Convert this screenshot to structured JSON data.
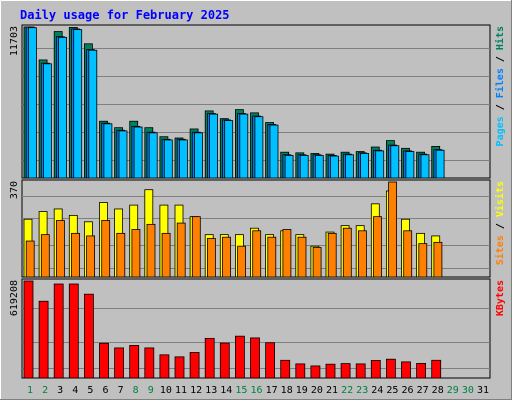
{
  "colors": {
    "background": "#C0C0C0",
    "plot_background": "#C0C0C0",
    "grid": "#808080",
    "title": "#0000FF",
    "axis_text": "#000000",
    "weekend": "#008040",
    "hits": "#00805C",
    "files": "#0080FF",
    "pages": "#00C0FF",
    "visits": "#FFFF00",
    "sites": "#FF8000",
    "kbytes": "#FF0000"
  },
  "chart_data": [
    {
      "type": "bar",
      "title": "Daily usage for February 2025",
      "ymax_label": "11703",
      "ylim": [
        0,
        11703
      ],
      "right_labels": [
        {
          "text": "Pages",
          "color": "#00C0FF"
        },
        {
          "text": " / ",
          "color": "#000000"
        },
        {
          "text": "Files",
          "color": "#0080FF"
        },
        {
          "text": " / ",
          "color": "#000000"
        },
        {
          "text": "Hits",
          "color": "#00805C"
        }
      ],
      "categories": [
        "1",
        "2",
        "3",
        "4",
        "5",
        "6",
        "7",
        "8",
        "9",
        "10",
        "11",
        "12",
        "13",
        "14",
        "15",
        "16",
        "17",
        "18",
        "19",
        "20",
        "21",
        "22",
        "23",
        "24",
        "25",
        "26",
        "27",
        "28",
        "29",
        "30",
        "31"
      ],
      "weekend_days": [
        "1",
        "2",
        "8",
        "9",
        "15",
        "16",
        "22",
        "23",
        "29",
        "30"
      ],
      "series": [
        {
          "name": "Hits",
          "color": "#00805C",
          "values": [
            11703,
            9150,
            11350,
            11670,
            10400,
            4400,
            3900,
            4400,
            3900,
            3200,
            3100,
            3800,
            5200,
            4600,
            5300,
            5050,
            4300,
            2000,
            1950,
            1900,
            1850,
            2000,
            2050,
            2400,
            2900,
            2300,
            2000,
            2450,
            null,
            null,
            null
          ]
        },
        {
          "name": "Files",
          "color": "#0080FF",
          "values": [
            11703,
            8900,
            10950,
            11550,
            9950,
            4250,
            3700,
            4000,
            3550,
            3000,
            3000,
            3550,
            5000,
            4500,
            5000,
            4800,
            4150,
            1800,
            1800,
            1800,
            1750,
            1850,
            1950,
            2150,
            2550,
            2100,
            1850,
            2200,
            null,
            null,
            null
          ]
        },
        {
          "name": "Pages",
          "color": "#00C0FF",
          "values": [
            11650,
            8850,
            10900,
            11500,
            9900,
            4200,
            3650,
            3950,
            3500,
            2950,
            2950,
            3500,
            4950,
            4450,
            4950,
            4750,
            4100,
            1750,
            1750,
            1750,
            1700,
            1800,
            1900,
            2100,
            2500,
            2050,
            1800,
            2150,
            null,
            null,
            null
          ]
        }
      ]
    },
    {
      "type": "bar",
      "ymax_label": "370",
      "ylim": [
        0,
        370
      ],
      "right_labels": [
        {
          "text": "Sites",
          "color": "#FF8000"
        },
        {
          "text": " / ",
          "color": "#000000"
        },
        {
          "text": "Visits",
          "color": "#FFFF00"
        }
      ],
      "series": [
        {
          "name": "Visits",
          "color": "#FFFF00",
          "values": [
            225,
            255,
            265,
            240,
            215,
            290,
            265,
            280,
            340,
            280,
            280,
            235,
            165,
            165,
            165,
            190,
            165,
            180,
            165,
            120,
            175,
            200,
            200,
            285,
            335,
            225,
            170,
            160,
            null,
            null,
            null
          ]
        },
        {
          "name": "Sites",
          "color": "#FF8000",
          "values": [
            140,
            165,
            220,
            170,
            160,
            220,
            170,
            185,
            205,
            170,
            210,
            235,
            150,
            155,
            120,
            180,
            155,
            185,
            155,
            115,
            170,
            190,
            180,
            235,
            370,
            180,
            130,
            135,
            null,
            null,
            null
          ]
        }
      ]
    },
    {
      "type": "bar",
      "ymax_label": "619208",
      "ylim": [
        0,
        619208
      ],
      "right_labels": [
        {
          "text": "KBytes",
          "color": "#FF0000"
        }
      ],
      "series": [
        {
          "name": "KBytes",
          "color": "#FF0000",
          "values": [
            619208,
            490000,
            600000,
            600000,
            535000,
            222000,
            192000,
            208000,
            192000,
            148000,
            135000,
            163000,
            253000,
            223000,
            267000,
            256000,
            225000,
            113000,
            90000,
            77000,
            88000,
            92000,
            90000,
            112000,
            120000,
            103000,
            93000,
            113000,
            null,
            null,
            null
          ]
        }
      ]
    }
  ]
}
